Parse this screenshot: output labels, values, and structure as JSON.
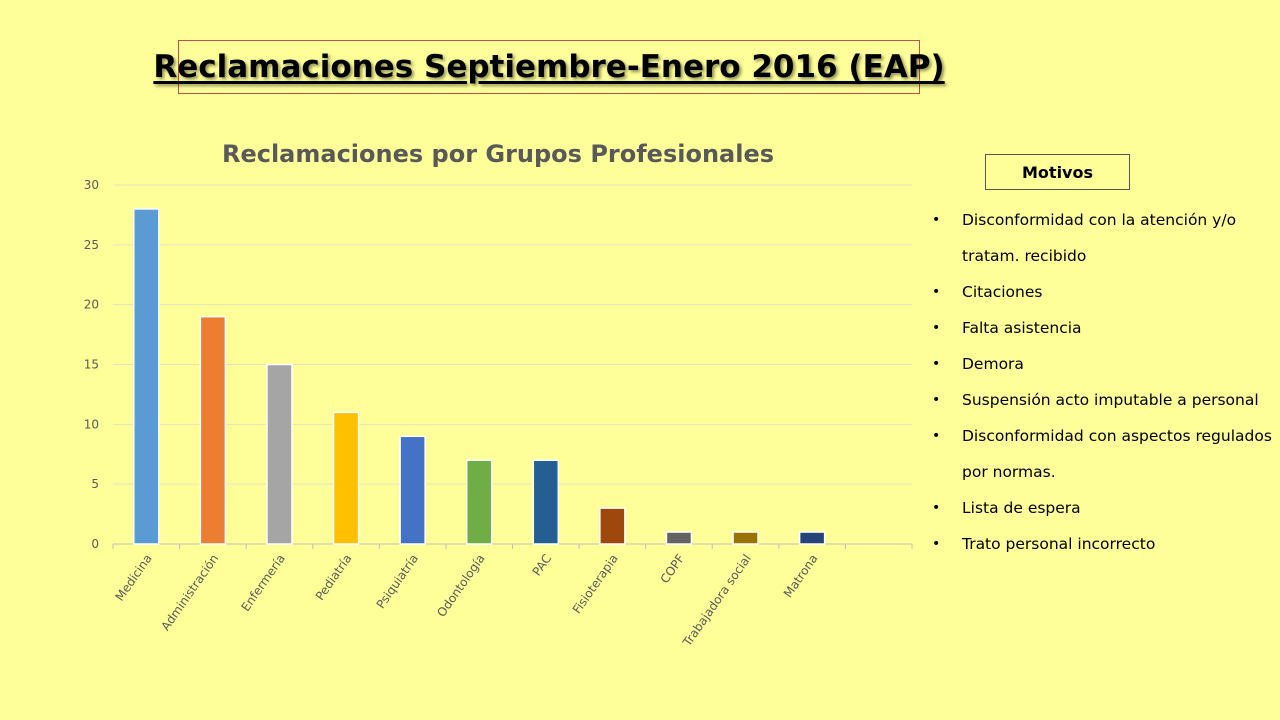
{
  "slide": {
    "title": "Reclamaciones Septiembre-Enero 2016 (EAP)"
  },
  "motivos": {
    "heading": "Motivos",
    "items": [
      "Disconformidad con la atención y/o tratam. recibido",
      "Citaciones",
      "Falta  asistencia",
      "Demora",
      "Suspensión acto imputable a personal",
      "Disconformidad con aspectos regulados por normas.",
      "Lista de espera",
      "Trato personal incorrecto"
    ]
  },
  "chart_data": {
    "type": "bar",
    "title": "Reclamaciones por Grupos Profesionales",
    "xlabel": "",
    "ylabel": "",
    "categories": [
      "Medicina",
      "Administración",
      "Enfermería",
      "Pediatría",
      "Psiquiatría",
      "Odontología",
      "PAC",
      "Fisioterapia",
      "COPF",
      "Trabajadora social",
      "Matrona"
    ],
    "values": [
      28,
      19,
      15,
      11,
      9,
      7,
      7,
      3,
      1,
      1,
      1
    ],
    "colors": [
      "#5b9bd5",
      "#ed7d31",
      "#a5a5a5",
      "#ffc000",
      "#4472c4",
      "#70ad47",
      "#255e91",
      "#9e480e",
      "#636363",
      "#997300",
      "#264478"
    ],
    "ylim": [
      0,
      30
    ],
    "yticks": [
      0,
      5,
      10,
      15,
      20,
      25,
      30
    ],
    "grid": true,
    "legend": "none"
  }
}
